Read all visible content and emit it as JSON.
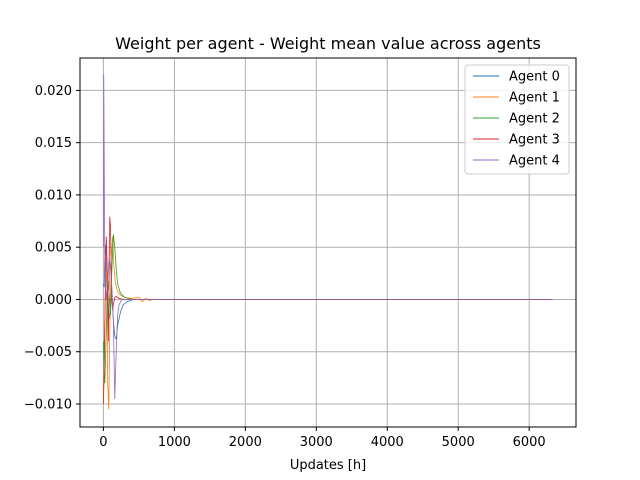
{
  "chart_data": {
    "type": "line",
    "title": "Weight per agent - Weight mean value across agents",
    "xlabel": "Updates [h]",
    "ylabel": "",
    "xlim": [
      -330,
      6660
    ],
    "ylim": [
      -0.0122,
      0.0231
    ],
    "xticks": [
      0,
      1000,
      2000,
      3000,
      4000,
      5000,
      6000
    ],
    "xtick_labels": [
      "0",
      "1000",
      "2000",
      "3000",
      "4000",
      "5000",
      "6000"
    ],
    "yticks": [
      -0.01,
      -0.005,
      0.0,
      0.005,
      0.01,
      0.015,
      0.02
    ],
    "ytick_labels": [
      "−0.010",
      "−0.005",
      "0.000",
      "0.005",
      "0.010",
      "0.015",
      "0.020"
    ],
    "grid": true,
    "legend_position": "top-right",
    "series": [
      {
        "name": "Agent 0",
        "color": "#1f77b4",
        "x": [
          0,
          10,
          20,
          30,
          40,
          50,
          60,
          80,
          100,
          120,
          140,
          160,
          180,
          200,
          240,
          280,
          340,
          420,
          500,
          600,
          800,
          1000,
          6330
        ],
        "y": [
          0.0015,
          0.0012,
          0.004,
          0.0052,
          0.003,
          0.001,
          -0.001,
          -0.0018,
          -0.0008,
          0.0005,
          -0.002,
          -0.0035,
          -0.0038,
          -0.0025,
          -0.0012,
          -0.0005,
          -0.0002,
          0.0,
          0.0,
          0.0,
          0.0,
          0.0,
          0.0
        ]
      },
      {
        "name": "Agent 1",
        "color": "#ff7f0e",
        "x": [
          0,
          10,
          20,
          30,
          45,
          60,
          75,
          90,
          110,
          130,
          150,
          170,
          200,
          240,
          300,
          400,
          500,
          550,
          600,
          650,
          700,
          800,
          1000,
          6330
        ],
        "y": [
          -0.0095,
          -0.006,
          -0.002,
          0.001,
          0.003,
          -0.008,
          -0.0105,
          -0.003,
          0.004,
          0.006,
          0.003,
          0.0015,
          0.0008,
          0.0004,
          0.0002,
          0.0001,
          0.0002,
          -0.0002,
          0.0001,
          -0.0001,
          0.0,
          0.0,
          0.0,
          0.0
        ]
      },
      {
        "name": "Agent 2",
        "color": "#2ca02c",
        "x": [
          0,
          10,
          20,
          40,
          60,
          80,
          100,
          120,
          140,
          160,
          180,
          200,
          240,
          300,
          400,
          500,
          600,
          800,
          1000,
          6330
        ],
        "y": [
          -0.004,
          -0.007,
          -0.008,
          -0.003,
          0.002,
          0.0005,
          -0.0015,
          0.003,
          0.0062,
          0.005,
          0.003,
          0.0015,
          0.0006,
          0.0002,
          0.0,
          0.0,
          0.0,
          0.0,
          0.0,
          0.0
        ]
      },
      {
        "name": "Agent 3",
        "color": "#d62728",
        "x": [
          0,
          10,
          20,
          30,
          40,
          50,
          60,
          70,
          80,
          90,
          100,
          110,
          120,
          130,
          140,
          160,
          180,
          220,
          300,
          400,
          600,
          1000,
          6330
        ],
        "y": [
          -0.01,
          -0.007,
          -0.002,
          0.003,
          0.006,
          0.004,
          0.0,
          -0.004,
          0.002,
          0.0079,
          0.007,
          0.003,
          0.0,
          -0.001,
          -0.0005,
          0.0002,
          0.0003,
          0.0001,
          0.0,
          0.0,
          0.0,
          0.0,
          0.0
        ]
      },
      {
        "name": "Agent 4",
        "color": "#9467bd",
        "x": [
          0,
          5,
          10,
          15,
          20,
          30,
          40,
          60,
          80,
          100,
          120,
          140,
          160,
          180,
          200,
          220,
          260,
          320,
          400,
          500,
          700,
          1000,
          6330
        ],
        "y": [
          0.005,
          0.0215,
          0.015,
          0.008,
          0.004,
          0.001,
          0.0,
          0.002,
          0.004,
          0.003,
          0.001,
          -0.002,
          -0.0095,
          -0.005,
          -0.0015,
          -0.0005,
          0.0,
          0.0,
          0.0,
          0.0,
          0.0,
          0.0,
          0.0
        ]
      }
    ]
  }
}
